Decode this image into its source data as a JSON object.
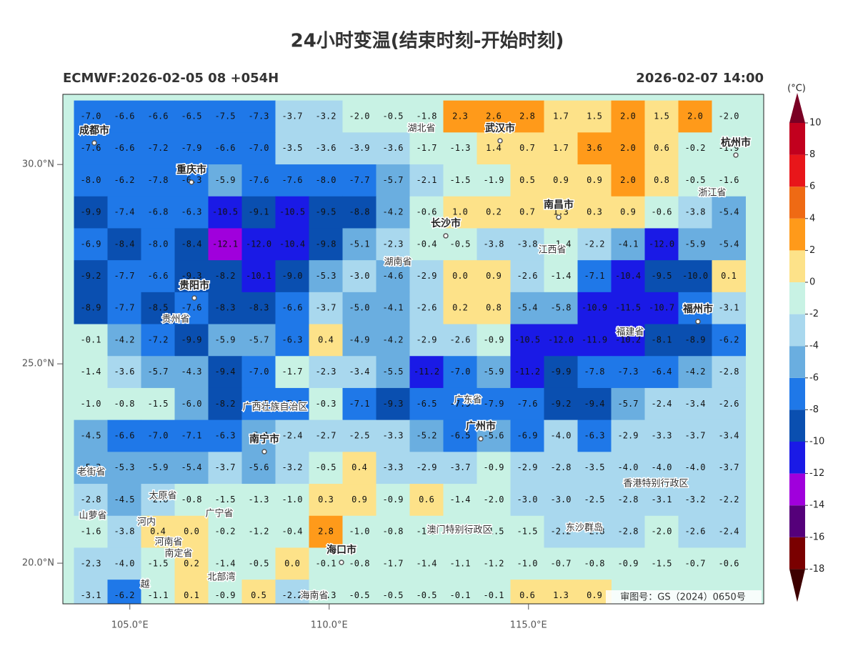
{
  "title": "24小时变温(结束时刻-开始时刻)",
  "subtitle_left": "ECMWF:2026-02-05 08 +054H",
  "subtitle_right": "2026-02-07 14:00",
  "map": {
    "xlim": [
      103.32,
      120.9
    ],
    "ylim": [
      18.98,
      31.76
    ],
    "xticks": [
      {
        "value": 105,
        "label": "105.0°E"
      },
      {
        "value": 110,
        "label": "110.0°E"
      },
      {
        "value": 115,
        "label": "115.0°E"
      }
    ],
    "yticks": [
      {
        "value": 20,
        "label": "20.0°N"
      },
      {
        "value": 25,
        "label": "25.0°N"
      },
      {
        "value": 30,
        "label": "30.0°N"
      }
    ],
    "values": [
      [
        "-7.0",
        "-6.6",
        "-6.6",
        "-6.5",
        "-7.5",
        "-7.3",
        "-3.7",
        "-3.2",
        "-2.0",
        "-0.5",
        "-1.8",
        "2.3",
        "2.6",
        "2.8",
        "1.7",
        "1.5",
        "2.0",
        "1.5",
        "2.0",
        "-2.0"
      ],
      [
        "-7.6",
        "-6.6",
        "-7.2",
        "-7.9",
        "-6.6",
        "-7.0",
        "-3.5",
        "-3.6",
        "-3.9",
        "-3.6",
        "-1.7",
        "-1.3",
        "1.4",
        "0.7",
        "1.7",
        "3.6",
        "2.0",
        "0.6",
        "-0.2",
        "-1.9"
      ],
      [
        "-8.0",
        "-6.2",
        "-7.8",
        "-6.3",
        "-5.9",
        "-7.6",
        "-7.6",
        "-8.0",
        "-7.7",
        "-5.7",
        "-2.1",
        "-1.5",
        "-1.9",
        "0.5",
        "0.9",
        "0.9",
        "2.0",
        "0.8",
        "-0.5",
        "-1.6"
      ],
      [
        "-9.9",
        "-7.4",
        "-6.8",
        "-6.3",
        "-10.5",
        "-9.1",
        "-10.5",
        "-9.5",
        "-8.8",
        "-4.2",
        "-0.6",
        "1.0",
        "0.2",
        "0.7",
        "1.3",
        "0.3",
        "0.9",
        "-0.6",
        "-3.8",
        "-5.4"
      ],
      [
        "-6.9",
        "-8.4",
        "-8.0",
        "-8.4",
        "-12.1",
        "-12.0",
        "-10.4",
        "-9.8",
        "-5.1",
        "-2.3",
        "-0.4",
        "-0.5",
        "-3.8",
        "-3.8",
        "-1.4",
        "-2.2",
        "-4.1",
        "-12.0",
        "-5.9",
        "-5.4"
      ],
      [
        "-9.2",
        "-7.7",
        "-6.6",
        "-9.3",
        "-8.2",
        "-10.1",
        "-9.0",
        "-5.3",
        "-3.0",
        "-4.6",
        "-2.9",
        "0.0",
        "0.9",
        "-2.6",
        "-1.4",
        "-7.1",
        "-10.4",
        "-9.5",
        "-10.0",
        "0.1"
      ],
      [
        "-8.9",
        "-7.7",
        "-8.5",
        "-7.6",
        "-8.3",
        "-8.3",
        "-6.6",
        "-3.7",
        "-5.0",
        "-4.1",
        "-2.6",
        "0.2",
        "0.8",
        "-5.4",
        "-5.8",
        "-10.9",
        "-11.5",
        "-10.7",
        "-6.3",
        "-3.1"
      ],
      [
        "-0.1",
        "-4.2",
        "-7.2",
        "-9.9",
        "-5.9",
        "-5.7",
        "-6.3",
        "0.4",
        "-4.9",
        "-4.2",
        "-2.9",
        "-2.6",
        "-0.9",
        "-10.5",
        "-12.0",
        "-11.9",
        "-10.2",
        "-8.1",
        "-8.9",
        "-6.2"
      ],
      [
        "-1.4",
        "-3.6",
        "-5.7",
        "-4.3",
        "-9.4",
        "-7.0",
        "-1.7",
        "-2.3",
        "-3.4",
        "-5.5",
        "-11.2",
        "-7.0",
        "-5.9",
        "-11.2",
        "-9.9",
        "-7.8",
        "-7.3",
        "-6.4",
        "-4.2",
        "-2.8"
      ],
      [
        "-1.0",
        "-0.8",
        "-1.5",
        "-6.0",
        "-8.2",
        "-6.5",
        "-7.0",
        "-0.3",
        "-7.1",
        "-9.3",
        "-6.5",
        "-7.9",
        "-7.9",
        "-7.6",
        "-9.2",
        "-9.4",
        "-5.7",
        "-2.4",
        "-3.4",
        "-2.6"
      ],
      [
        "-4.5",
        "-6.6",
        "-7.0",
        "-7.1",
        "-6.3",
        "-5.1",
        "-2.4",
        "-2.7",
        "-2.5",
        "-3.3",
        "-5.2",
        "-6.5",
        "-5.6",
        "-6.9",
        "-4.0",
        "-6.3",
        "-2.9",
        "-3.3",
        "-3.7",
        "-3.4"
      ],
      [
        "-5.3",
        "-5.3",
        "-5.9",
        "-5.4",
        "-3.7",
        "-5.6",
        "-3.2",
        "-0.5",
        "0.4",
        "-3.3",
        "-2.9",
        "-3.7",
        "-0.9",
        "-2.9",
        "-2.8",
        "-3.5",
        "-4.0",
        "-4.0",
        "-4.0",
        "-3.7"
      ],
      [
        "-2.8",
        "-4.5",
        "-2.8",
        "-0.8",
        "-1.5",
        "-1.3",
        "-1.0",
        "0.3",
        "0.9",
        "-0.9",
        "0.6",
        "-1.4",
        "-2.0",
        "-3.0",
        "-3.0",
        "-2.5",
        "-2.8",
        "-3.1",
        "-3.2",
        "-2.2"
      ],
      [
        "-1.6",
        "-3.8",
        "0.4",
        "0.0",
        "-0.2",
        "-1.2",
        "-0.4",
        "2.8",
        "-1.0",
        "-0.8",
        "-1.2",
        "-1.5",
        "-1.5",
        "-1.5",
        "-2.2",
        "-2.8",
        "-2.8",
        "-2.0",
        "-2.6",
        "-2.4"
      ],
      [
        "-2.3",
        "-4.0",
        "-1.5",
        "0.2",
        "-1.4",
        "-0.5",
        "0.0",
        "-0.1",
        "-0.8",
        "-1.7",
        "-1.4",
        "-1.1",
        "-1.2",
        "-1.0",
        "-0.7",
        "-0.8",
        "-0.9",
        "-1.5",
        "-0.7",
        "-0.6"
      ],
      [
        "-3.1",
        "-6.2",
        "-1.1",
        "0.1",
        "-0.9",
        "0.5",
        "-2.2",
        "-1.3",
        "-0.5",
        "-0.5",
        "-0.5",
        "-0.1",
        "-0.1",
        "0.6",
        "1.3",
        "0.9",
        null,
        null,
        null,
        null
      ]
    ],
    "places": [
      "成都市",
      "重庆市",
      "贵阳市",
      "贵州省",
      "湖北省",
      "武汉市",
      "长沙市",
      "湖南省",
      "南昌市",
      "江西省",
      "杭州市",
      "浙江省",
      "福州市",
      "福建省",
      "广东省",
      "广州市",
      "广西壮族自治区",
      "南宁市",
      "香港特别行政区",
      "澳门特别行政区",
      "海口市",
      "海南省",
      "老街省",
      "太原省",
      "山萝省",
      "河内",
      "河南省",
      "南定省",
      "广宁省",
      "北部湾",
      "东沙群岛",
      "越"
    ],
    "approval": "审图号：GS（2024）0650号"
  },
  "colorbar": {
    "unit": "(°C)",
    "levels": [
      -18,
      -16,
      -14,
      -12,
      -10,
      -8,
      -6,
      -4,
      -2,
      0,
      2,
      4,
      6,
      8,
      10
    ],
    "colors": [
      "#3d0000",
      "#7a0000",
      "#55007a",
      "#a000dc",
      "#1a1ae6",
      "#0a4fb0",
      "#1f78e8",
      "#6aaee0",
      "#a9d8ee",
      "#c8f2e4",
      "#fde289",
      "#ff9a1a",
      "#ef6a14",
      "#e8161a",
      "#c2001e",
      "#7a0024"
    ]
  }
}
